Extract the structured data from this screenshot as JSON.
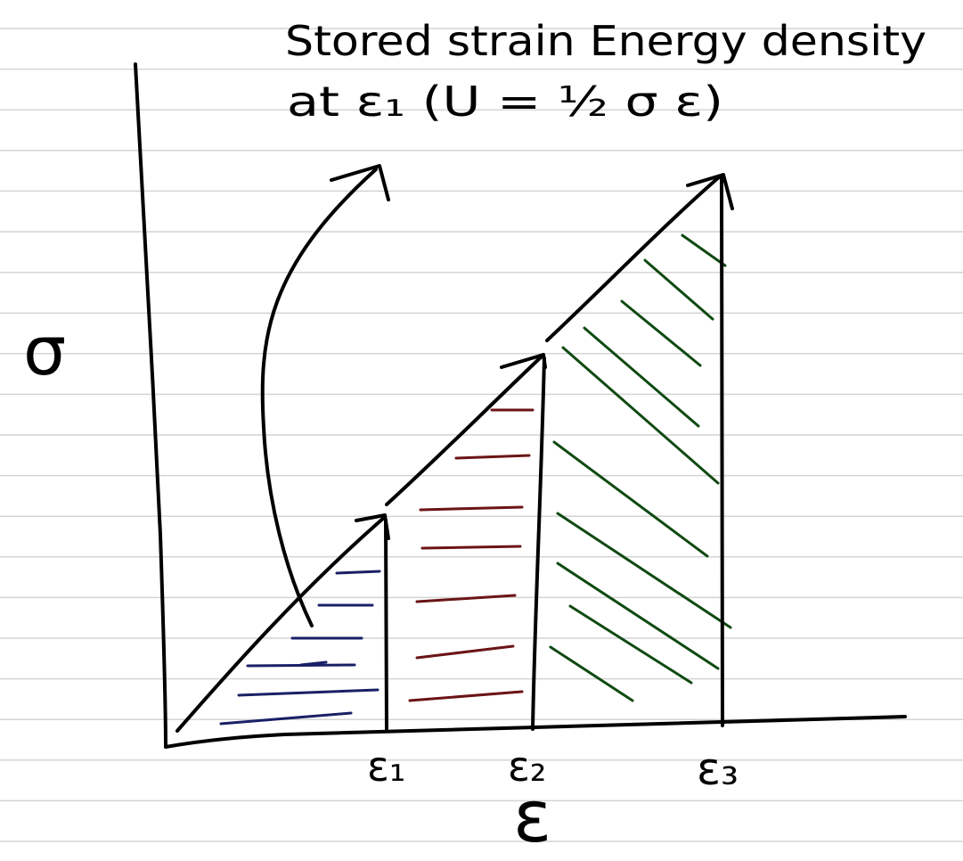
{
  "annotation": {
    "line1": "Stored strain Energy density",
    "line2": "at ε₁ (U = ½ σ ε)"
  },
  "axes": {
    "y_label": "σ",
    "x_label": "ε"
  },
  "ticks": [
    {
      "label": "ε₁"
    },
    {
      "label": "ε₂"
    },
    {
      "label": "ε₃"
    }
  ],
  "colors": {
    "ink": "#000000",
    "rule": "#d4d4d4",
    "hatch_1": "#1a1f66",
    "hatch_2": "#6b1414",
    "hatch_3": "#0f4a12"
  }
}
